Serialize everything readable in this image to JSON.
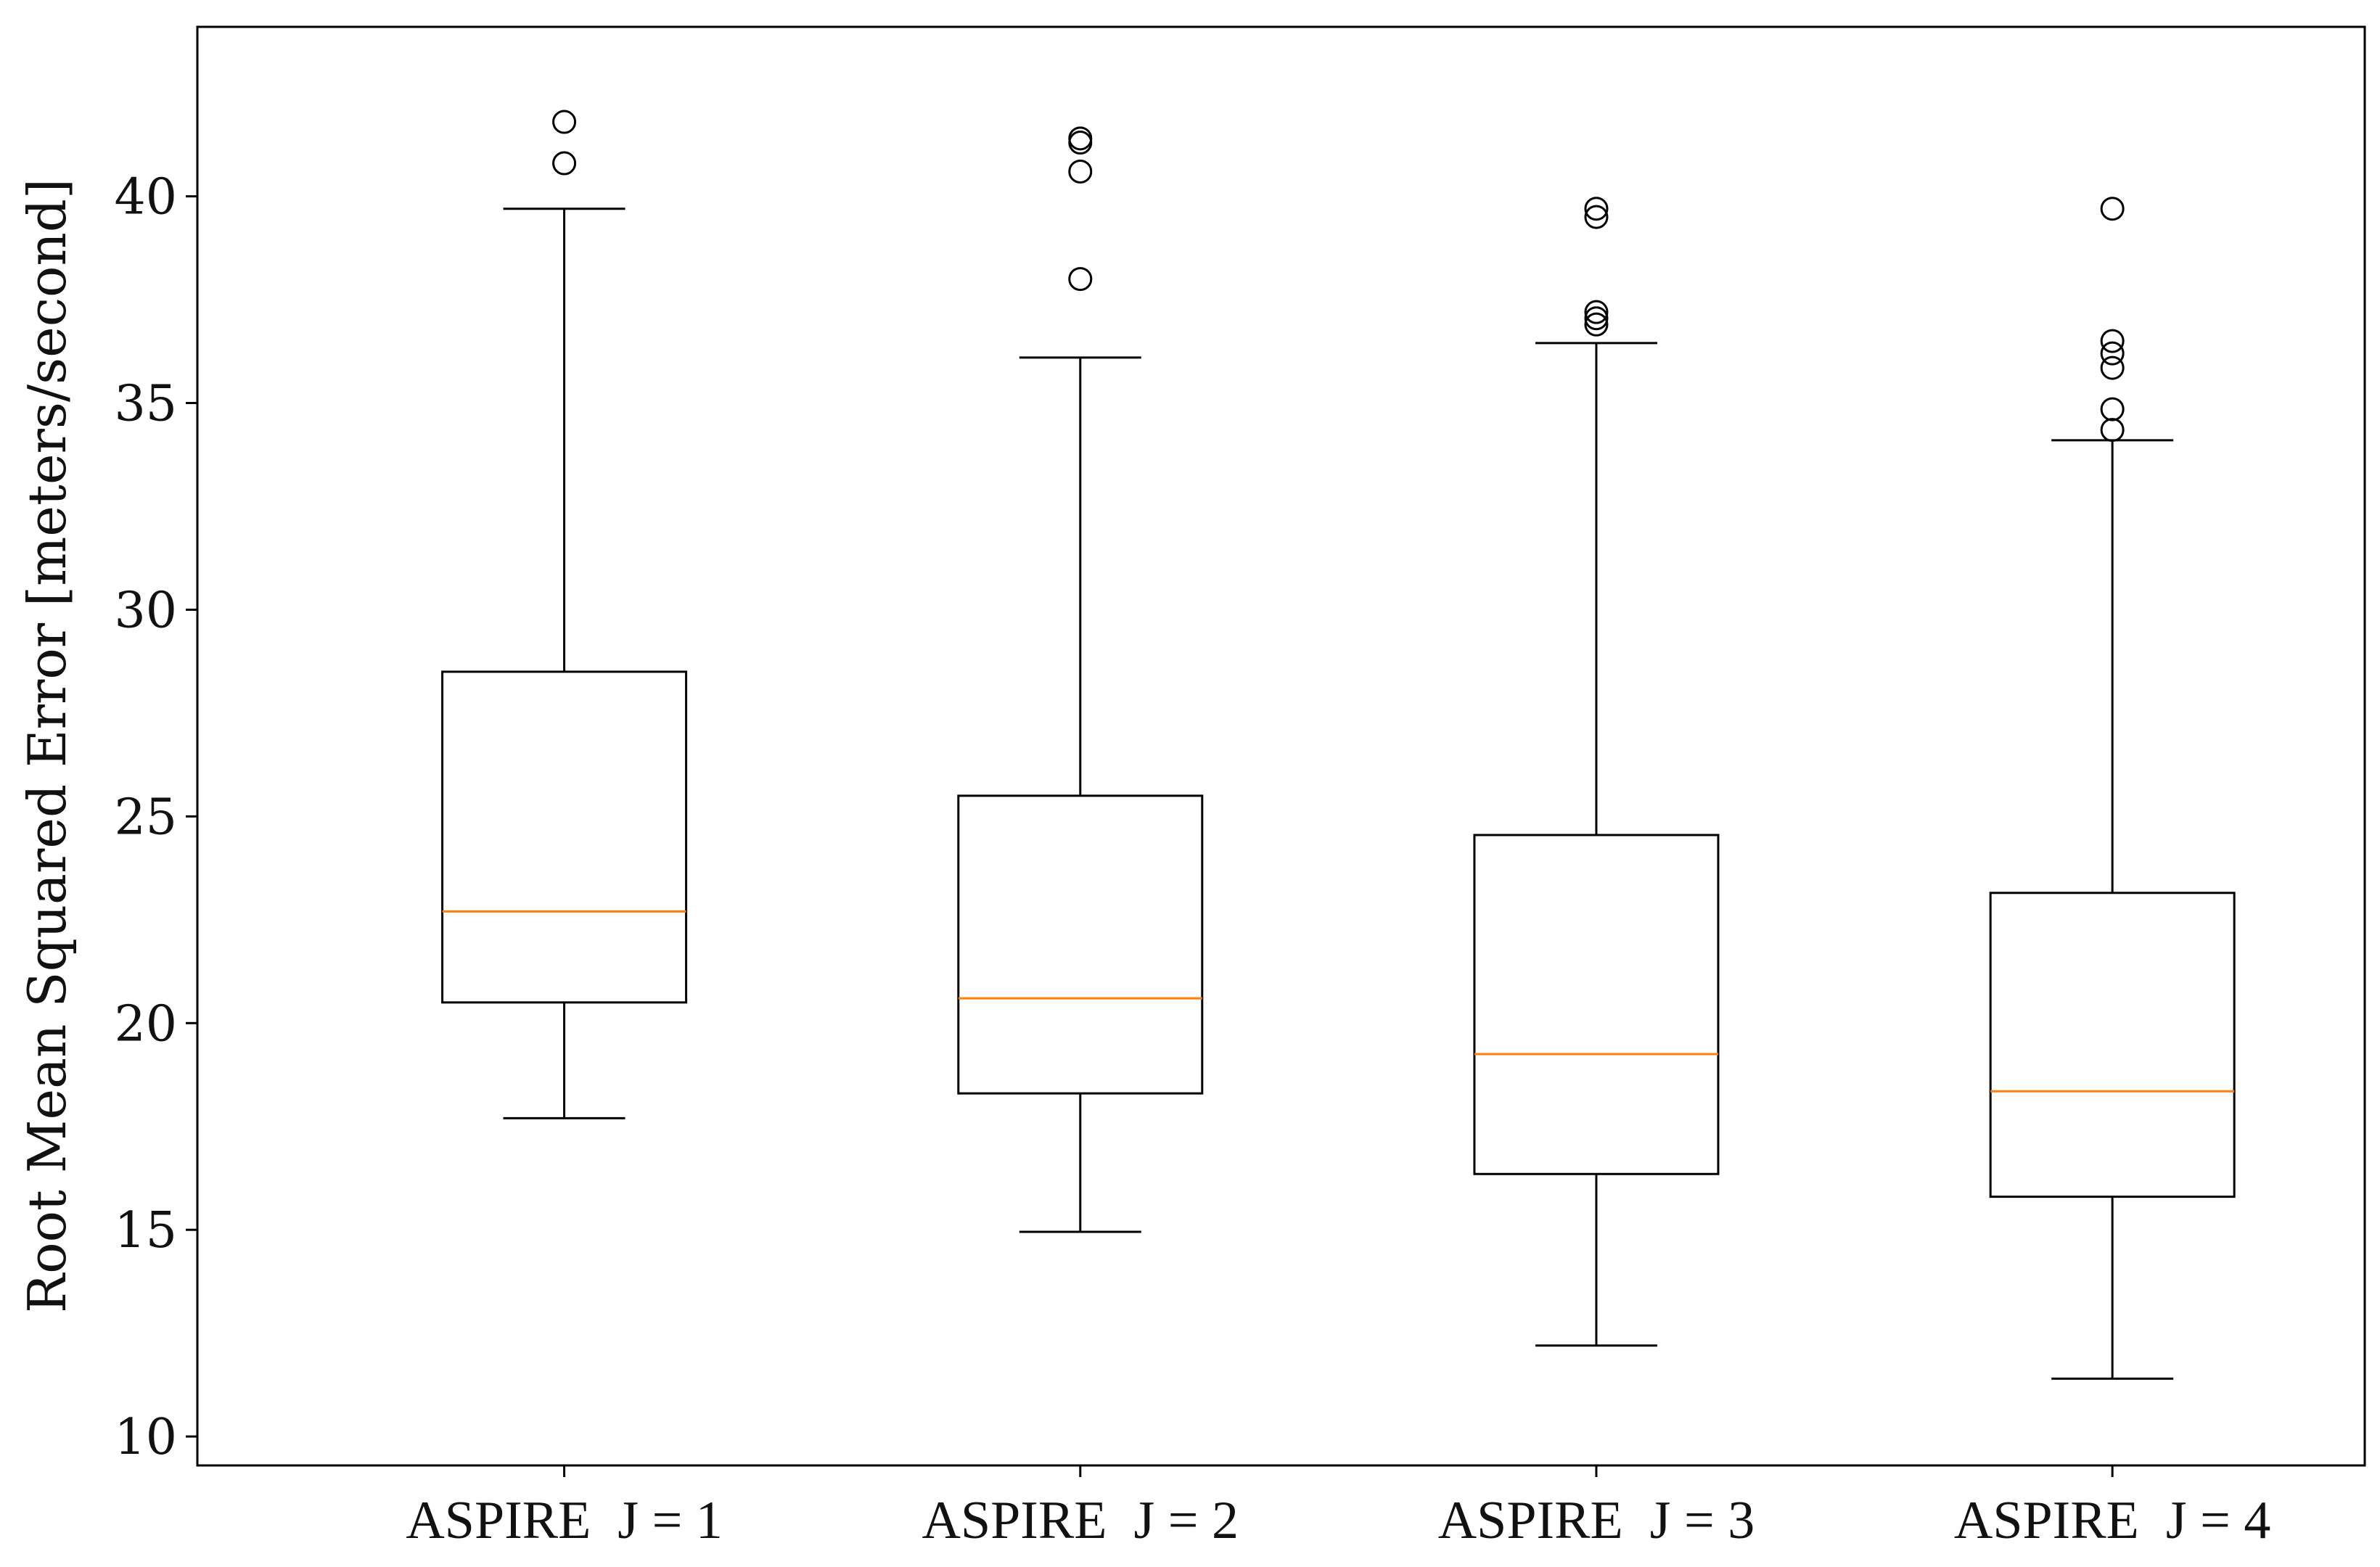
{
  "chart_data": {
    "type": "box",
    "ylabel": "Root Mean Squared Error [meters/second]",
    "xlabel": "",
    "ylim": [
      9.3,
      44.1
    ],
    "yticks": [
      10,
      15,
      20,
      25,
      30,
      35,
      40
    ],
    "grid": false,
    "categories": [
      "ASPIRE  J = 1",
      "ASPIRE  J = 2",
      "ASPIRE  J = 3",
      "ASPIRE  J = 4"
    ],
    "boxes": [
      {
        "whisker_low": 17.7,
        "q1": 20.5,
        "median": 22.7,
        "q3": 28.5,
        "whisker_high": 39.7,
        "outliers": [
          40.8,
          41.8
        ]
      },
      {
        "whisker_low": 14.95,
        "q1": 18.3,
        "median": 20.6,
        "q3": 25.5,
        "whisker_high": 36.1,
        "outliers": [
          38.0,
          40.6,
          41.3,
          41.4
        ]
      },
      {
        "whisker_low": 12.2,
        "q1": 16.35,
        "median": 19.25,
        "q3": 24.55,
        "whisker_high": 36.45,
        "outliers": [
          36.9,
          37.05,
          37.2,
          39.5,
          39.7
        ]
      },
      {
        "whisker_low": 11.4,
        "q1": 15.8,
        "median": 18.35,
        "q3": 23.15,
        "whisker_high": 34.1,
        "outliers": [
          34.35,
          34.85,
          35.85,
          36.2,
          36.5,
          39.7
        ]
      }
    ],
    "colors": {
      "box": "#000000",
      "median": "#ff7f0e",
      "outlier": "#000000"
    }
  }
}
